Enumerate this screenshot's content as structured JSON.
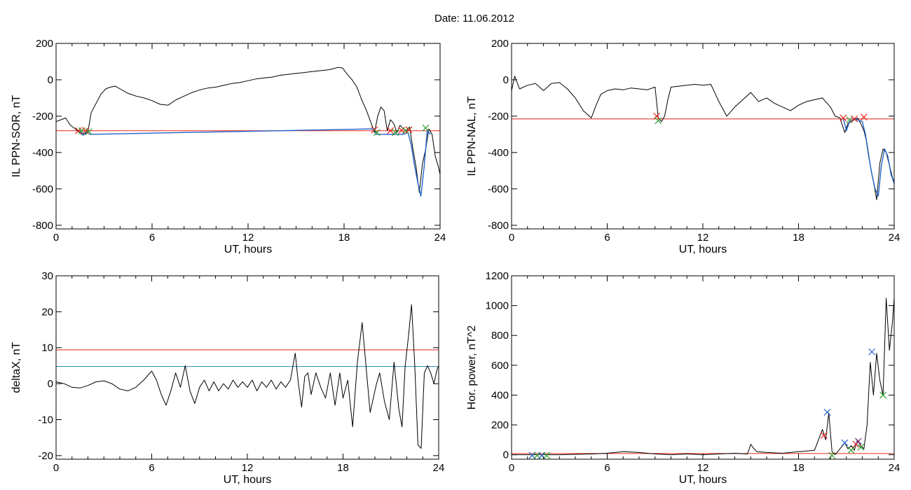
{
  "title": "Date:  11.06.2012",
  "colors": {
    "threshold_red": "#e8261f",
    "threshold_blue": "#2c8fbf",
    "trace": "#000000",
    "highlight": "#1f62c7",
    "marker_red": "#e8261f",
    "marker_green": "#2ca02c",
    "marker_blue": "#1f62c7",
    "marker_purple": "#8b2c8b"
  },
  "chart_data": [
    {
      "type": "line",
      "xlabel": "UT, hours",
      "ylabel": "IL PPN-SOR, nT",
      "xlim": [
        0,
        24
      ],
      "ylim": [
        -820,
        200
      ],
      "xticks": [
        0,
        6,
        12,
        18,
        24
      ],
      "yticks": [
        200,
        0,
        -200,
        -400,
        -600,
        -800
      ],
      "thresholds": [
        {
          "value": -280,
          "color": "red"
        }
      ],
      "series": [
        {
          "x": [
            0,
            0.3,
            0.6,
            0.9,
            1.2,
            1.4,
            1.6,
            1.8,
            2.0,
            2.2,
            2.5,
            2.8,
            3.1,
            3.4,
            3.7,
            4.0,
            4.5,
            5.0,
            5.5,
            6.0,
            6.5,
            7.0,
            7.5,
            8.0,
            8.5,
            9.0,
            9.5,
            10.0,
            10.5,
            11.0,
            11.5,
            12.0,
            12.5,
            13.0,
            13.5,
            14.0,
            14.5,
            15.0,
            15.5,
            16.0,
            16.5,
            17.0,
            17.3,
            17.6,
            17.9,
            18.2,
            18.5,
            18.8,
            19.1,
            19.4,
            19.7,
            19.9,
            20.1,
            20.3,
            20.5,
            20.7,
            20.9,
            21.1,
            21.3,
            21.5,
            21.7,
            21.9,
            22.1,
            22.3,
            22.5,
            22.7,
            22.9,
            23.1,
            23.3,
            23.5,
            23.7,
            23.9,
            24.0
          ],
          "y": [
            -230,
            -220,
            -210,
            -250,
            -270,
            -285,
            -300,
            -300,
            -280,
            -180,
            -130,
            -80,
            -50,
            -40,
            -35,
            -50,
            -75,
            -90,
            -100,
            -115,
            -135,
            -140,
            -110,
            -90,
            -70,
            -55,
            -45,
            -40,
            -30,
            -20,
            -15,
            -5,
            5,
            10,
            15,
            25,
            30,
            35,
            40,
            45,
            50,
            55,
            60,
            68,
            65,
            30,
            0,
            -40,
            -110,
            -170,
            -240,
            -290,
            -200,
            -150,
            -170,
            -280,
            -220,
            -240,
            -290,
            -250,
            -270,
            -280,
            -260,
            -380,
            -480,
            -620,
            -460,
            -380,
            -270,
            -300,
            -420,
            -480,
            -520
          ]
        },
        {
          "x": [
            1.5,
            1.7,
            1.9,
            2.1,
            19.9,
            20.0,
            21.7,
            22.0,
            22.2,
            22.4,
            22.6,
            22.8,
            23.0,
            23.2,
            23.4
          ],
          "y": [
            -280,
            -305,
            -285,
            -300,
            -270,
            -300,
            -300,
            -290,
            -360,
            -470,
            -560,
            -640,
            -480,
            -280,
            -300
          ],
          "highlight": true
        }
      ],
      "markers": [
        {
          "x": 1.4,
          "y": -280,
          "color": "red"
        },
        {
          "x": 1.6,
          "y": -280,
          "color": "green"
        },
        {
          "x": 1.85,
          "y": -280,
          "color": "red"
        },
        {
          "x": 2.05,
          "y": -285,
          "color": "green"
        },
        {
          "x": 19.9,
          "y": -275,
          "color": "red"
        },
        {
          "x": 20.05,
          "y": -290,
          "color": "green"
        },
        {
          "x": 20.9,
          "y": -280,
          "color": "red"
        },
        {
          "x": 21.2,
          "y": -290,
          "color": "green"
        },
        {
          "x": 21.6,
          "y": -278,
          "color": "red"
        },
        {
          "x": 21.85,
          "y": -280,
          "color": "green"
        },
        {
          "x": 22.05,
          "y": -275,
          "color": "red"
        },
        {
          "x": 23.1,
          "y": -265,
          "color": "green"
        }
      ]
    },
    {
      "type": "line",
      "xlabel": "UT, hours",
      "ylabel": "IL PPN-NAL, nT",
      "xlim": [
        0,
        24
      ],
      "ylim": [
        -820,
        200
      ],
      "xticks": [
        0,
        6,
        12,
        18,
        24
      ],
      "yticks": [
        200,
        0,
        -200,
        -400,
        -600,
        -800
      ],
      "thresholds": [
        {
          "value": -215,
          "color": "red"
        }
      ],
      "series": [
        {
          "x": [
            0,
            0.2,
            0.5,
            1.0,
            1.5,
            2.0,
            2.5,
            3.0,
            3.5,
            4.0,
            4.5,
            5.0,
            5.3,
            5.6,
            6.0,
            6.5,
            7.0,
            7.5,
            8.0,
            8.5,
            9.0,
            9.2,
            9.4,
            9.6,
            9.8,
            10.0,
            10.5,
            11.0,
            11.5,
            12.0,
            12.5,
            13.0,
            13.5,
            14.0,
            14.5,
            15.0,
            15.5,
            16.0,
            16.5,
            17.0,
            17.5,
            18.0,
            18.5,
            19.0,
            19.5,
            20.0,
            20.3,
            20.6,
            20.9,
            21.1,
            21.3,
            21.5,
            21.7,
            21.9,
            22.1,
            22.3,
            22.5,
            22.7,
            22.9,
            23.1,
            23.3,
            23.5,
            23.7,
            23.9,
            24.0
          ],
          "y": [
            -60,
            20,
            -50,
            -30,
            -20,
            -60,
            -20,
            -15,
            -50,
            -100,
            -170,
            -210,
            -140,
            -80,
            -60,
            -50,
            -55,
            -45,
            -50,
            -55,
            -40,
            -210,
            -230,
            -200,
            -110,
            -40,
            -35,
            -30,
            -25,
            -30,
            -25,
            -120,
            -200,
            -150,
            -110,
            -70,
            -120,
            -100,
            -130,
            -150,
            -170,
            -140,
            -120,
            -110,
            -100,
            -150,
            -200,
            -210,
            -290,
            -240,
            -230,
            -220,
            -210,
            -240,
            -280,
            -350,
            -470,
            -560,
            -660,
            -460,
            -380,
            -400,
            -470,
            -540,
            -560
          ]
        },
        {
          "x": [
            20.8,
            21.0,
            21.2,
            21.5,
            22.0,
            22.2,
            22.4,
            22.6,
            22.8,
            23.0,
            23.2,
            23.4,
            23.6,
            23.8,
            24.0
          ],
          "y": [
            -210,
            -280,
            -230,
            -215,
            -230,
            -300,
            -420,
            -520,
            -600,
            -640,
            -470,
            -380,
            -420,
            -520,
            -570
          ],
          "highlight": true
        }
      ],
      "markers": [
        {
          "x": 9.1,
          "y": -200,
          "color": "red"
        },
        {
          "x": 9.2,
          "y": -225,
          "color": "green"
        },
        {
          "x": 20.8,
          "y": -210,
          "color": "red"
        },
        {
          "x": 21.2,
          "y": -220,
          "color": "green"
        },
        {
          "x": 21.5,
          "y": -215,
          "color": "red"
        },
        {
          "x": 22.1,
          "y": -205,
          "color": "red"
        }
      ]
    },
    {
      "type": "line",
      "xlabel": "UT, hours",
      "ylabel": "deltaX, nT",
      "xlim": [
        0,
        24
      ],
      "ylim": [
        -21,
        30
      ],
      "xticks": [
        0,
        6,
        12,
        18,
        24
      ],
      "yticks": [
        30,
        20,
        10,
        0,
        -10,
        -20
      ],
      "thresholds": [
        {
          "value": 9.4,
          "color": "red"
        },
        {
          "value": 4.8,
          "color": "blue"
        }
      ],
      "series": [
        {
          "x": [
            0,
            0.5,
            1.0,
            1.5,
            2.0,
            2.5,
            3.0,
            3.5,
            4.0,
            4.5,
            5.0,
            5.5,
            6.0,
            6.3,
            6.6,
            6.9,
            7.2,
            7.5,
            7.8,
            8.1,
            8.4,
            8.7,
            9.0,
            9.3,
            9.6,
            9.9,
            10.2,
            10.5,
            10.8,
            11.1,
            11.4,
            11.7,
            12.0,
            12.3,
            12.6,
            12.9,
            13.2,
            13.5,
            13.8,
            14.1,
            14.4,
            14.7,
            15.0,
            15.2,
            15.4,
            15.6,
            15.8,
            16.0,
            16.3,
            16.6,
            16.9,
            17.2,
            17.5,
            17.8,
            18.0,
            18.3,
            18.6,
            18.9,
            19.2,
            19.5,
            19.7,
            19.9,
            20.1,
            20.3,
            20.6,
            20.9,
            21.2,
            21.5,
            21.7,
            21.9,
            22.1,
            22.3,
            22.5,
            22.7,
            22.9,
            23.1,
            23.3,
            23.5,
            23.7,
            23.9,
            24.0
          ],
          "y": [
            0.5,
            0,
            -1,
            -1.2,
            -0.5,
            0.5,
            0.8,
            0,
            -1.5,
            -2,
            -1,
            1,
            3.5,
            1,
            -3,
            -6,
            -2,
            3,
            -1,
            5,
            -2,
            -5.5,
            -1,
            1,
            -2,
            0.5,
            -2,
            0,
            -1.5,
            1,
            -1,
            0.5,
            -1,
            1,
            -2,
            0.5,
            -1,
            1,
            -1.5,
            0.5,
            -1,
            1,
            8.5,
            0,
            -6.5,
            2,
            3,
            -3,
            3,
            -1,
            -4,
            3,
            -6,
            3,
            -4,
            1,
            -12,
            6,
            17,
            2,
            -8,
            -4,
            0,
            3,
            -5,
            -10,
            6,
            -7,
            -12,
            5,
            13,
            22,
            5,
            -17,
            -18,
            3,
            5,
            3,
            0,
            4,
            5
          ]
        }
      ]
    },
    {
      "type": "line",
      "xlabel": "UT, hours",
      "ylabel": "Hor. power, nT^2",
      "xlim": [
        0,
        24
      ],
      "ylim": [
        -30,
        1200
      ],
      "xticks": [
        0,
        6,
        12,
        18,
        24
      ],
      "yticks": [
        1200,
        1000,
        800,
        600,
        400,
        200,
        0
      ],
      "thresholds": [
        {
          "value": 8,
          "color": "red"
        }
      ],
      "series": [
        {
          "x": [
            0,
            3.0,
            5.0,
            6.0,
            7.0,
            8.0,
            9.0,
            10.0,
            11.0,
            12.0,
            13.0,
            14.0,
            14.8,
            15.0,
            15.2,
            15.4,
            16.0,
            17.0,
            18.0,
            19.0,
            19.5,
            19.7,
            19.9,
            20.1,
            20.3,
            20.6,
            20.9,
            21.1,
            21.3,
            21.5,
            21.7,
            21.9,
            22.1,
            22.3,
            22.5,
            22.7,
            22.9,
            23.1,
            23.3,
            23.5,
            23.7,
            23.9,
            24.0
          ],
          "y": [
            0,
            0,
            5,
            10,
            20,
            15,
            5,
            0,
            5,
            0,
            5,
            10,
            5,
            70,
            40,
            20,
            15,
            10,
            20,
            30,
            170,
            100,
            280,
            20,
            0,
            40,
            80,
            40,
            60,
            30,
            100,
            60,
            40,
            200,
            620,
            400,
            680,
            500,
            400,
            1050,
            700,
            900,
            1050
          ]
        }
      ],
      "markers": [
        {
          "x": 1.3,
          "y": -5,
          "color": "blue"
        },
        {
          "x": 1.6,
          "y": -5,
          "color": "green"
        },
        {
          "x": 1.9,
          "y": -5,
          "color": "blue"
        },
        {
          "x": 2.2,
          "y": -5,
          "color": "green"
        },
        {
          "x": 19.6,
          "y": 130,
          "color": "red"
        },
        {
          "x": 19.8,
          "y": 285,
          "color": "blue"
        },
        {
          "x": 20.1,
          "y": -5,
          "color": "green"
        },
        {
          "x": 20.9,
          "y": 80,
          "color": "blue"
        },
        {
          "x": 21.3,
          "y": 30,
          "color": "green"
        },
        {
          "x": 21.6,
          "y": 70,
          "color": "red"
        },
        {
          "x": 21.75,
          "y": 90,
          "color": "purple"
        },
        {
          "x": 21.9,
          "y": 50,
          "color": "green"
        },
        {
          "x": 22.6,
          "y": 690,
          "color": "blue"
        },
        {
          "x": 23.3,
          "y": 400,
          "color": "green"
        }
      ]
    }
  ]
}
